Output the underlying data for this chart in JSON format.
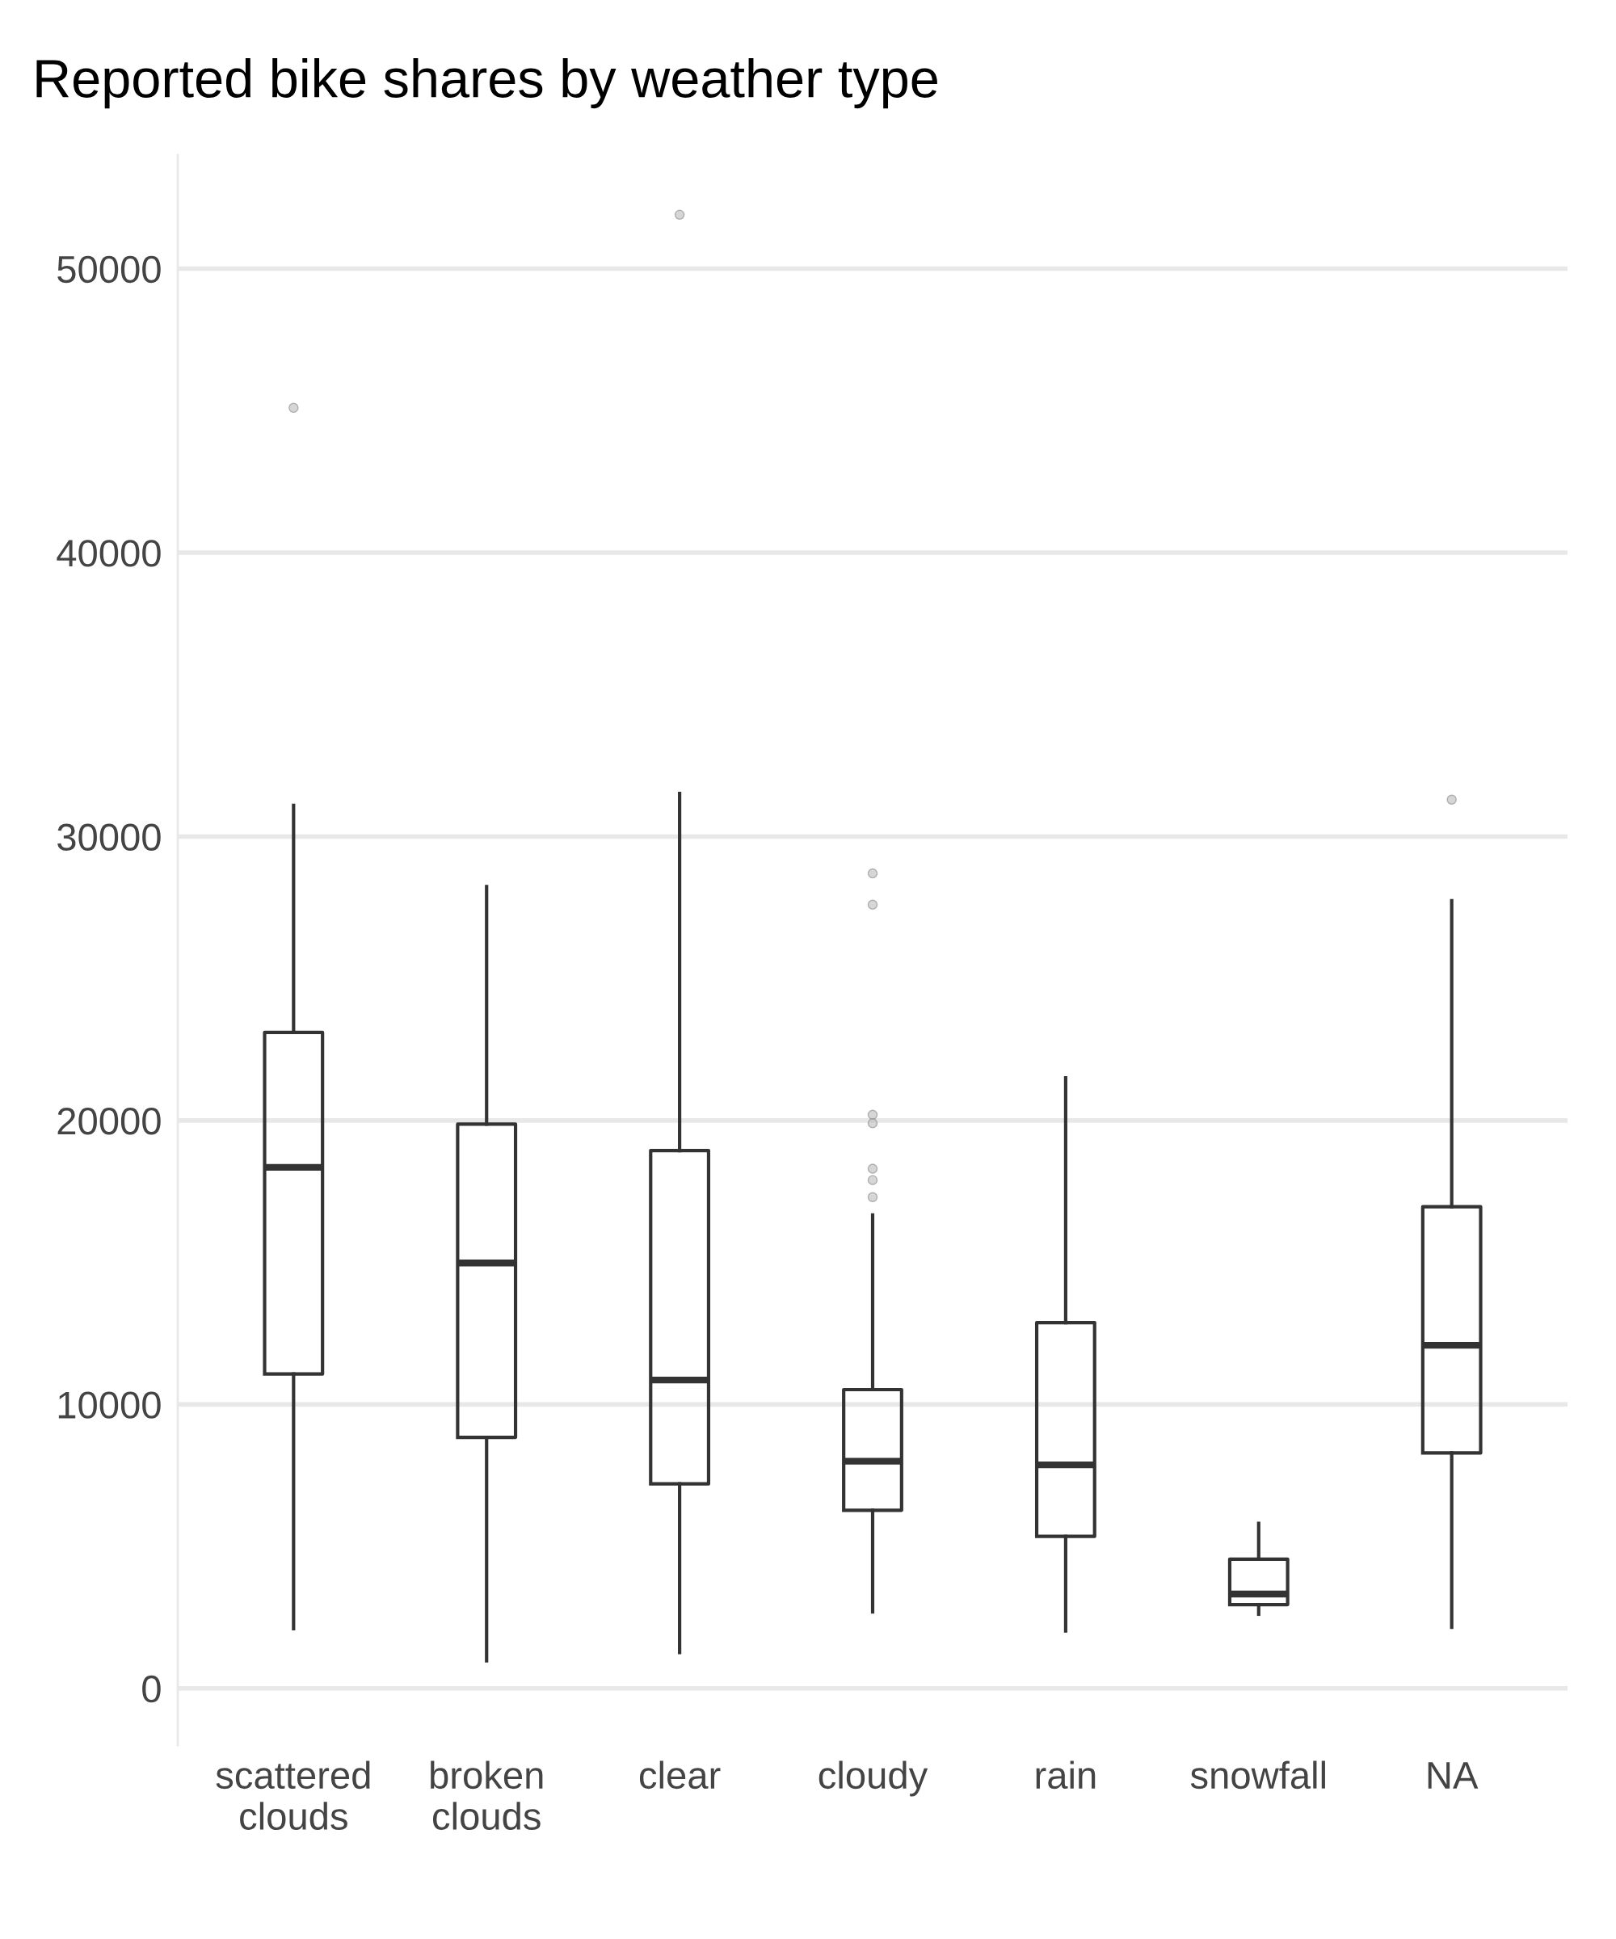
{
  "chart_data": {
    "type": "box",
    "title": "Reported bike shares by weather type",
    "categories": [
      "scattered clouds",
      "broken clouds",
      "clear",
      "cloudy",
      "rain",
      "snowfall",
      "NA"
    ],
    "boxes": [
      {
        "low": 2100,
        "q1": 11070,
        "median": 18350,
        "q3": 23100,
        "high": 31100,
        "outliers": [
          45100
        ]
      },
      {
        "low": 970,
        "q1": 8840,
        "median": 14980,
        "q3": 19870,
        "high": 28240
      },
      {
        "low": 1260,
        "q1": 7200,
        "median": 10860,
        "q3": 18940,
        "high": 31520,
        "outliers": [
          51900
        ]
      },
      {
        "low": 2690,
        "q1": 6270,
        "median": 8000,
        "q3": 10520,
        "high": 16670,
        "outliers": [
          28700,
          27600,
          20200,
          19900,
          18300,
          17900,
          17300
        ]
      },
      {
        "low": 2020,
        "q1": 5350,
        "median": 7870,
        "q3": 12880,
        "high": 21500
      },
      {
        "low": 2610,
        "q1": 2950,
        "median": 3320,
        "q3": 4550,
        "high": 5810
      },
      {
        "low": 2150,
        "q1": 8290,
        "median": 12080,
        "q3": 16960,
        "high": 27740,
        "outliers": [
          31300
        ]
      }
    ],
    "color": "#333333",
    "ylim": [
      -2000,
      54000
    ],
    "yticks": [
      0,
      10000,
      20000,
      30000,
      40000,
      50000
    ],
    "grid": "y"
  }
}
